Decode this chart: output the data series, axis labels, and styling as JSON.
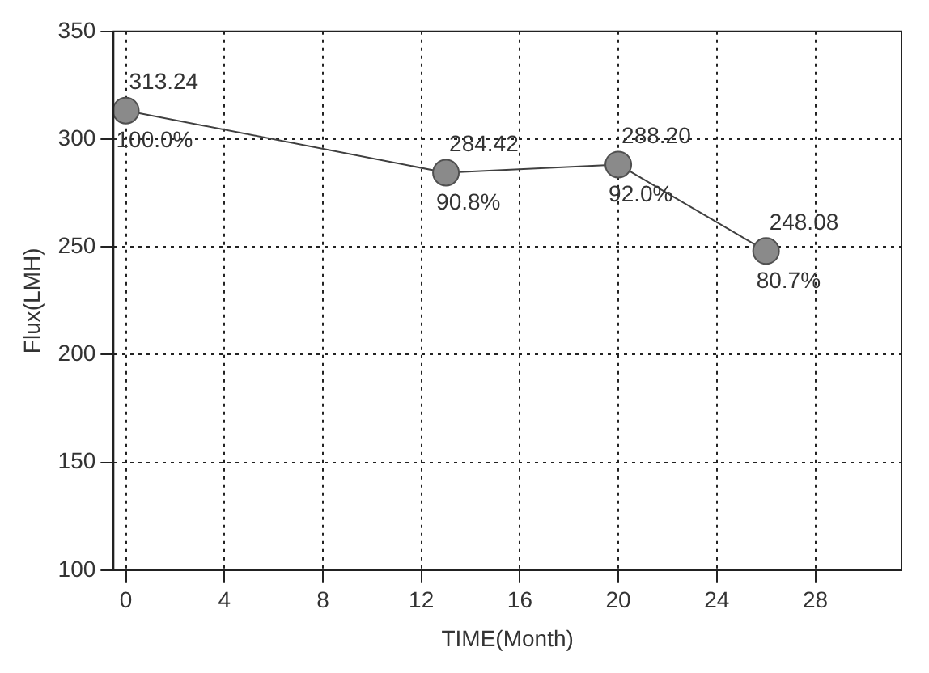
{
  "chart_data": {
    "type": "line",
    "xlabel": "TIME(Month)",
    "ylabel": "Flux(LMH)",
    "x": [
      0,
      13,
      20,
      26
    ],
    "series": [
      {
        "color": "#8a8a8a",
        "values": [
          313.24,
          284.42,
          288.2,
          248.08
        ],
        "value_labels": [
          "313.24",
          "284.42",
          "288.20",
          "248.08"
        ]
      }
    ],
    "annotations": [
      {
        "text": "100.0%",
        "x": 0,
        "y": 313.24
      },
      {
        "text": "90.8%",
        "x": 13,
        "y": 284.42
      },
      {
        "text": "92.0%",
        "x": 20,
        "y": 288.2
      },
      {
        "text": "80.7%",
        "x": 26,
        "y": 248.08
      }
    ],
    "xlim": [
      -0.5,
      31.5
    ],
    "xticks": [
      0,
      4,
      8,
      12,
      16,
      20,
      24,
      28
    ],
    "ylim": [
      100,
      350
    ],
    "yticks": [
      100,
      150,
      200,
      250,
      300,
      350
    ],
    "grid": true,
    "legend": false,
    "marker": "circle",
    "line_style": "solid"
  }
}
